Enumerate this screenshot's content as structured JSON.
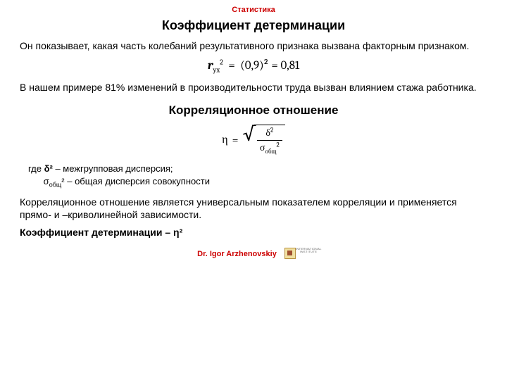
{
  "header": "Статистика",
  "title1": "Коэффициент детерминации",
  "para1": "Он показывает, какая часть колебаний результативного признака вызвана факторным признаком.",
  "formula1": {
    "lhs_base": "r",
    "lhs_sub": "yx",
    "lhs_sup": "2",
    "rhs": "(0,9)² = 0,81"
  },
  "para2": "В нашем примере 81% изменений в производительности труда вызван влиянием стажа работника.",
  "title2": "Корреляционное отношение",
  "formula2": {
    "eta": "η",
    "num_base": "δ",
    "num_sup": "2",
    "den_base": "σ",
    "den_sub": "общ",
    "den_sup": "2"
  },
  "defs_prefix": "где ",
  "def1_sym_base": "δ",
  "def1_sym_sup": "²",
  "def1_text": " – межгрупповая дисперсия;",
  "def2_sym_base": "σ",
  "def2_sym_sub": "общ",
  "def2_sym_sup": "²",
  "def2_text": " – общая дисперсия совокупности",
  "para3": "Корреляционное отношение является универсальным показателем корре­ляции и применяется прямо- и –криволинейной зависимости.",
  "para4": "Коэффициент детерминации – η²",
  "footer_author": "Dr. Igor Arzhenovskiy",
  "logo_text": "INTERNATIONAL INSTITUTE",
  "colors": {
    "accent": "#cc0000",
    "text": "#000000",
    "background": "#ffffff"
  }
}
